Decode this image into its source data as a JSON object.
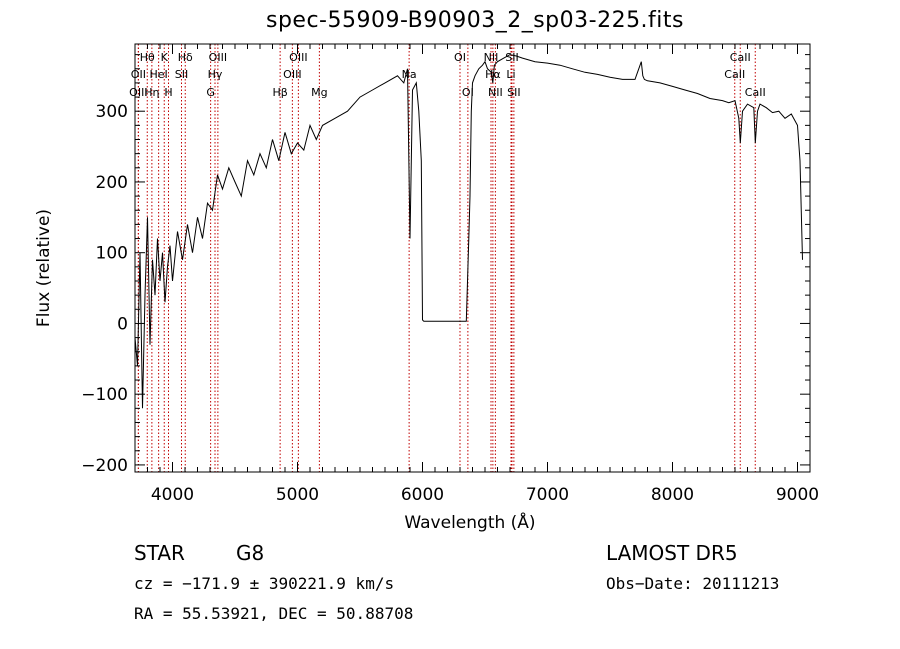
{
  "title": "spec-55909-B90903_2_sp03-225.fits",
  "info": {
    "class_label": "STAR",
    "subclass": "G8",
    "cz": "cz = −171.9 ± 390221.9 km/s",
    "coords": "RA =  55.53921, DEC =  50.88708",
    "survey": "LAMOST DR5",
    "obs_date": "Obs−Date: 20111213"
  },
  "chart_data": {
    "type": "line",
    "title": "spec-55909-B90903_2_sp03-225.fits",
    "xlabel": "Wavelength (Å)",
    "ylabel": "Flux (relative)",
    "xlim": [
      3700,
      9100
    ],
    "ylim": [
      -210,
      395
    ],
    "xticks": [
      4000,
      5000,
      6000,
      7000,
      8000,
      9000
    ],
    "yticks": [
      -200,
      -100,
      0,
      100,
      200,
      300
    ],
    "grid": false,
    "series": [
      {
        "x": [
          3700,
          3720,
          3740,
          3760,
          3780,
          3800,
          3820,
          3840,
          3860,
          3880,
          3900,
          3920,
          3940,
          3960,
          3980,
          4000,
          4040,
          4080,
          4120,
          4160,
          4200,
          4240,
          4280,
          4320,
          4360,
          4400,
          4450,
          4500,
          4550,
          4600,
          4650,
          4700,
          4750,
          4800,
          4850,
          4900,
          4950,
          5000,
          5050,
          5100,
          5150,
          5200,
          5300,
          5400,
          5500,
          5600,
          5700,
          5800,
          5850,
          5880,
          5900,
          5920,
          5950,
          5970,
          5990,
          6000,
          6010,
          6100,
          6200,
          6300,
          6350,
          6370,
          6380,
          6390,
          6400,
          6420,
          6450,
          6480,
          6500,
          6520,
          6550,
          6562,
          6575,
          6600,
          6650,
          6700,
          6750,
          6800,
          6900,
          7000,
          7100,
          7200,
          7300,
          7400,
          7500,
          7600,
          7700,
          7750,
          7762,
          7775,
          7800,
          7900,
          8000,
          8100,
          8200,
          8300,
          8400,
          8450,
          8500,
          8530,
          8542,
          8560,
          8600,
          8650,
          8662,
          8680,
          8700,
          8750,
          8800,
          8850,
          8900,
          8950,
          9000,
          9020,
          9040
        ],
        "y": [
          -20,
          -60,
          100,
          -120,
          40,
          150,
          -30,
          90,
          40,
          120,
          60,
          100,
          30,
          80,
          110,
          60,
          130,
          90,
          140,
          100,
          150,
          120,
          170,
          160,
          210,
          190,
          220,
          200,
          180,
          230,
          210,
          240,
          220,
          260,
          230,
          270,
          240,
          255,
          245,
          280,
          260,
          280,
          290,
          300,
          320,
          330,
          340,
          350,
          340,
          360,
          120,
          330,
          340,
          300,
          230,
          5,
          3,
          3,
          3,
          3,
          3,
          120,
          180,
          300,
          340,
          350,
          360,
          365,
          370,
          360,
          355,
          340,
          365,
          370,
          375,
          380,
          378,
          375,
          370,
          368,
          365,
          360,
          355,
          352,
          348,
          345,
          345,
          370,
          350,
          345,
          343,
          340,
          335,
          330,
          325,
          318,
          315,
          312,
          315,
          290,
          255,
          300,
          310,
          305,
          255,
          300,
          310,
          305,
          298,
          300,
          290,
          296,
          280,
          230,
          90
        ]
      }
    ],
    "lines": [
      {
        "name": "Hθ",
        "x": 3798,
        "row": 1
      },
      {
        "name": "OII",
        "x": 3727,
        "row": 2
      },
      {
        "name": "OIII",
        "x": 3727,
        "row": 3
      },
      {
        "name": "K",
        "x": 3934,
        "row": 1
      },
      {
        "name": "HeI",
        "x": 3889,
        "row": 2
      },
      {
        "name": "Hη",
        "x": 3835,
        "row": 3
      },
      {
        "name": "Hδ",
        "x": 4102,
        "row": 1
      },
      {
        "name": "SII",
        "x": 4072,
        "row": 2
      },
      {
        "name": "H",
        "x": 3968,
        "row": 3
      },
      {
        "name": "OIII",
        "x": 4363,
        "row": 1
      },
      {
        "name": "Hγ",
        "x": 4340,
        "row": 2
      },
      {
        "name": "G",
        "x": 4305,
        "row": 3
      },
      {
        "name": "OIII",
        "x": 5007,
        "row": 1
      },
      {
        "name": "OIII",
        "x": 4959,
        "row": 2
      },
      {
        "name": "Hβ",
        "x": 4861,
        "row": 3
      },
      {
        "name": "Mg",
        "x": 5175,
        "row": 3
      },
      {
        "name": "Na",
        "x": 5893,
        "row": 2
      },
      {
        "name": "OI",
        "x": 6300,
        "row": 1
      },
      {
        "name": "OI",
        "x": 6363,
        "row": 3
      },
      {
        "name": "NII",
        "x": 6548,
        "row": 1
      },
      {
        "name": "NII",
        "x": 6583,
        "row": 3
      },
      {
        "name": "Hα",
        "x": 6563,
        "row": 2
      },
      {
        "name": "SII",
        "x": 6716,
        "row": 1
      },
      {
        "name": "Li",
        "x": 6708,
        "row": 2
      },
      {
        "name": "SII",
        "x": 6731,
        "row": 3
      },
      {
        "name": "CaII",
        "x": 8498,
        "row": 2
      },
      {
        "name": "CaII",
        "x": 8542,
        "row": 1
      },
      {
        "name": "CaII",
        "x": 8662,
        "row": 3
      }
    ]
  }
}
